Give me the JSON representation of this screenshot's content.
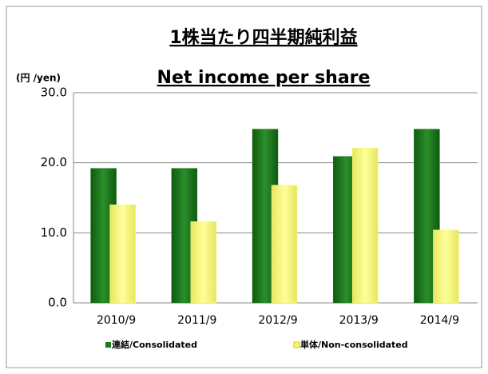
{
  "chart_data": {
    "type": "bar",
    "title": "1株当たり四半期純利益",
    "subtitle": "Net income per share",
    "y_axis_label": "(円 /yen)",
    "categories": [
      "2010/9",
      "2011/9",
      "2012/9",
      "2013/9",
      "2014/9"
    ],
    "series": [
      {
        "name": "連結/Consolidated",
        "color": "#1e7a1e",
        "values": [
          19.2,
          19.2,
          24.8,
          20.9,
          24.8
        ]
      },
      {
        "name": "単体/Non-consolidated",
        "color": "#f7f77a",
        "values": [
          14.0,
          11.6,
          16.8,
          22.1,
          10.4
        ]
      }
    ],
    "ylim": [
      0,
      30
    ],
    "yticks": [
      {
        "value": 0,
        "label": "0.0"
      },
      {
        "value": 10,
        "label": "10.0"
      },
      {
        "value": 20,
        "label": "20.0"
      },
      {
        "value": 30,
        "label": "30.0"
      }
    ],
    "grid": true,
    "legend": "bottom"
  }
}
